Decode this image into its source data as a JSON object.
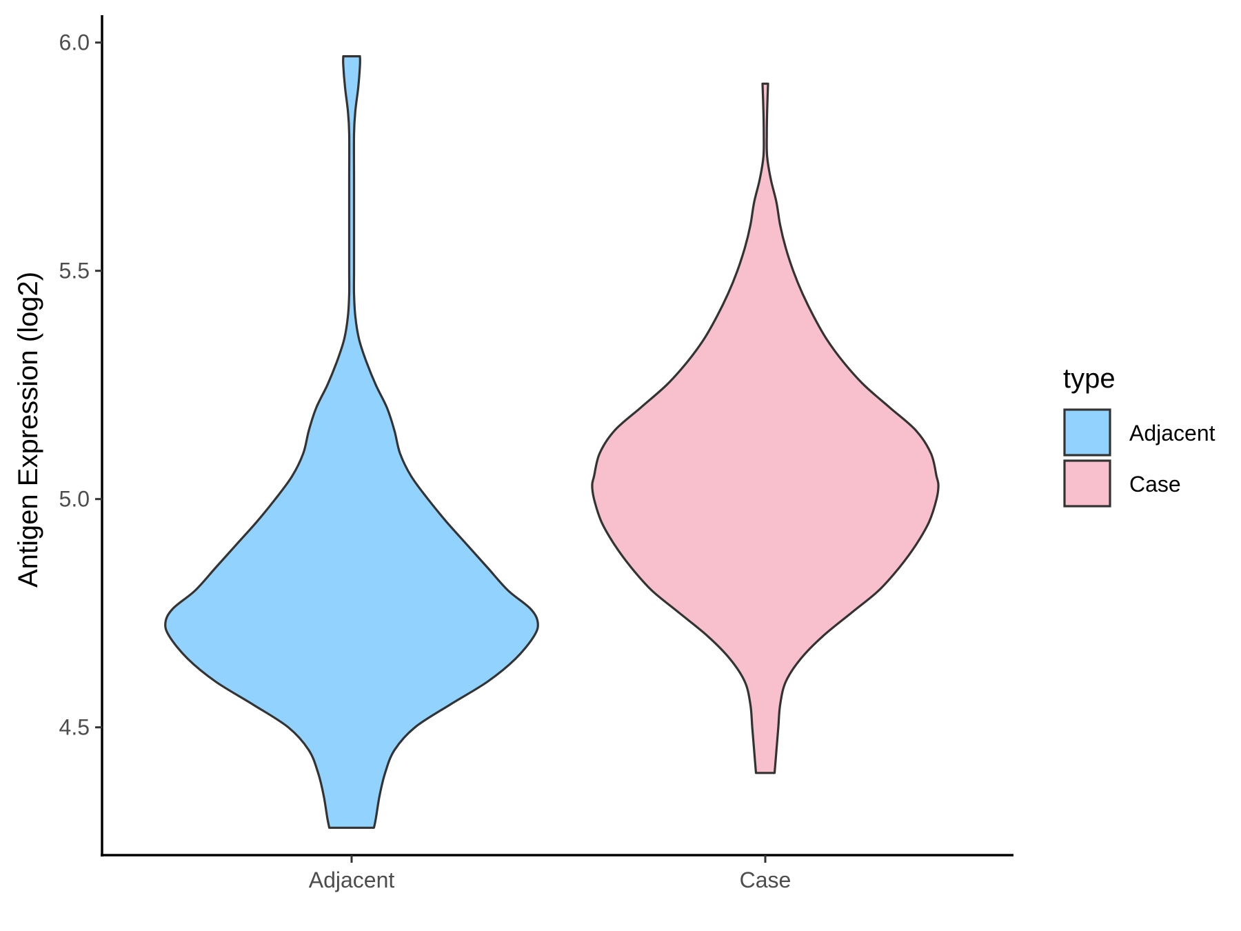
{
  "chart_data": {
    "type": "violin",
    "xlabel": "",
    "ylabel": "Antigen Expression (log2)",
    "ylim": [
      4.22,
      6.06
    ],
    "yticks": [
      "4.5",
      "5.0",
      "5.5",
      "6.0"
    ],
    "categories": [
      "Adjacent",
      "Case"
    ],
    "grid": false,
    "legend": {
      "title": "type",
      "position": "right",
      "entries": [
        "Adjacent",
        "Case"
      ]
    },
    "series": [
      {
        "name": "Adjacent",
        "color": "#92D2FF",
        "min": 4.28,
        "max": 5.97,
        "density": [
          [
            4.28,
            0.12
          ],
          [
            4.3,
            0.13
          ],
          [
            4.35,
            0.15
          ],
          [
            4.4,
            0.18
          ],
          [
            4.45,
            0.23
          ],
          [
            4.5,
            0.34
          ],
          [
            4.55,
            0.53
          ],
          [
            4.6,
            0.73
          ],
          [
            4.65,
            0.88
          ],
          [
            4.7,
            0.98
          ],
          [
            4.73,
            1.0
          ],
          [
            4.76,
            0.96
          ],
          [
            4.8,
            0.84
          ],
          [
            4.85,
            0.73
          ],
          [
            4.9,
            0.62
          ],
          [
            4.95,
            0.51
          ],
          [
            5.0,
            0.41
          ],
          [
            5.05,
            0.32
          ],
          [
            5.1,
            0.26
          ],
          [
            5.15,
            0.23
          ],
          [
            5.2,
            0.19
          ],
          [
            5.25,
            0.13
          ],
          [
            5.3,
            0.08
          ],
          [
            5.35,
            0.04
          ],
          [
            5.4,
            0.02
          ],
          [
            5.45,
            0.013
          ],
          [
            5.5,
            0.013
          ],
          [
            5.6,
            0.013
          ],
          [
            5.7,
            0.013
          ],
          [
            5.8,
            0.013
          ],
          [
            5.85,
            0.02
          ],
          [
            5.9,
            0.035
          ],
          [
            5.95,
            0.045
          ],
          [
            5.97,
            0.045
          ]
        ]
      },
      {
        "name": "Case",
        "color": "#F7C0CC",
        "min": 4.4,
        "max": 5.91,
        "density": [
          [
            4.4,
            0.05
          ],
          [
            4.45,
            0.06
          ],
          [
            4.5,
            0.07
          ],
          [
            4.55,
            0.08
          ],
          [
            4.6,
            0.11
          ],
          [
            4.65,
            0.19
          ],
          [
            4.7,
            0.31
          ],
          [
            4.75,
            0.46
          ],
          [
            4.8,
            0.61
          ],
          [
            4.85,
            0.72
          ],
          [
            4.9,
            0.81
          ],
          [
            4.95,
            0.88
          ],
          [
            5.0,
            0.92
          ],
          [
            5.03,
            0.93
          ],
          [
            5.05,
            0.92
          ],
          [
            5.1,
            0.89
          ],
          [
            5.15,
            0.81
          ],
          [
            5.2,
            0.67
          ],
          [
            5.25,
            0.53
          ],
          [
            5.3,
            0.42
          ],
          [
            5.35,
            0.33
          ],
          [
            5.4,
            0.26
          ],
          [
            5.45,
            0.2
          ],
          [
            5.5,
            0.15
          ],
          [
            5.55,
            0.11
          ],
          [
            5.6,
            0.08
          ],
          [
            5.65,
            0.06
          ],
          [
            5.7,
            0.03
          ],
          [
            5.75,
            0.01
          ],
          [
            5.8,
            0.008
          ],
          [
            5.85,
            0.01
          ],
          [
            5.91,
            0.015
          ]
        ]
      }
    ]
  }
}
